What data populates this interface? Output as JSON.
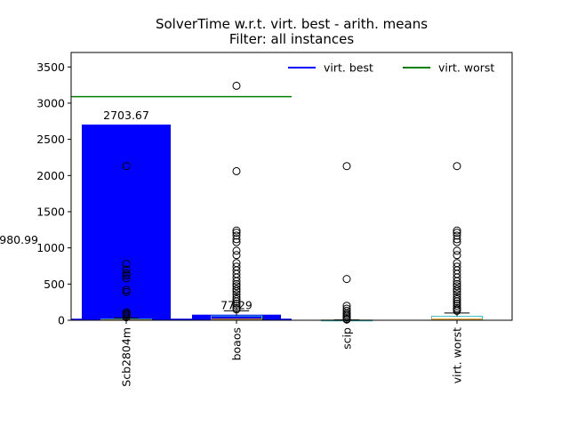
{
  "chart_data": {
    "type": "bar",
    "title": "SolverTime w.r.t. virt. best - arith. means",
    "subtitle": "Filter: all instances",
    "xlabel": "",
    "ylabel": "",
    "ylim": [
      0,
      3700
    ],
    "yticks": [
      "0",
      "500",
      "1000",
      "1500",
      "2000",
      "2500",
      "3000",
      "3500"
    ],
    "categories": [
      "Scb2804m",
      "boaos",
      "scip",
      "virt. worst"
    ],
    "bar_values": [
      2703.67,
      77.29,
      0,
      0
    ],
    "bar_labels": [
      "2703.67",
      "77.29",
      "",
      ""
    ],
    "bar_color": "#0000ff",
    "side_label": "980.99",
    "legend": {
      "placement": "top-right",
      "entries": [
        "virt. best",
        "virt. worst"
      ]
    },
    "virt_best_value": 0,
    "virt_worst_value": 3090,
    "series_colors": {
      "virt. best": "#0000ff",
      "virt. worst": "#008000"
    },
    "boxplots": [
      {
        "q1": 2,
        "median": 5,
        "q3": 15,
        "whisker_high": 30,
        "outliers": [
          40,
          60,
          80,
          90,
          110,
          390,
          420,
          580,
          620,
          650,
          700,
          780,
          2130
        ]
      },
      {
        "q1": 5,
        "median": 15,
        "q3": 60,
        "whisker_high": 130,
        "outliers": [
          150,
          170,
          200,
          230,
          260,
          290,
          320,
          360,
          400,
          430,
          470,
          500,
          540,
          590,
          640,
          690,
          740,
          790,
          900,
          960,
          1080,
          1120,
          1170,
          1210,
          1240,
          2060,
          3240
        ]
      },
      {
        "q1": 0,
        "median": 1,
        "q3": 3,
        "whisker_high": 5,
        "outliers": [
          10,
          20,
          40,
          60,
          80,
          100,
          130,
          160,
          200,
          570,
          2130
        ]
      },
      {
        "q1": 5,
        "median": 15,
        "q3": 55,
        "whisker_high": 100,
        "outliers": [
          130,
          150,
          170,
          200,
          230,
          260,
          290,
          320,
          360,
          400,
          430,
          470,
          500,
          540,
          590,
          640,
          690,
          740,
          790,
          900,
          960,
          1080,
          1120,
          1170,
          1210,
          1240,
          2130
        ]
      }
    ]
  }
}
